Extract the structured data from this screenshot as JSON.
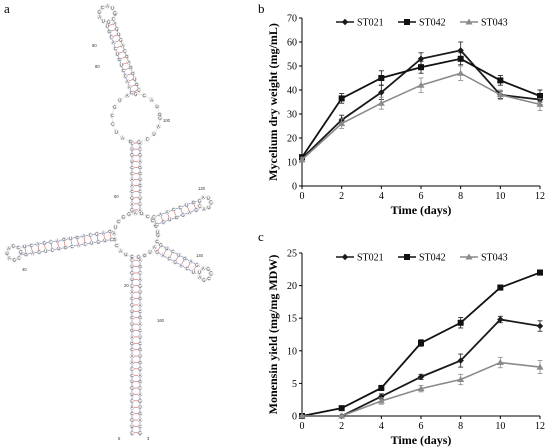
{
  "panels": {
    "a": "a",
    "b": "b",
    "c": "c"
  },
  "colors": {
    "ST021": "#1a1a1a",
    "ST042": "#111111",
    "ST043": "#8a8a8a",
    "pair": "#d43a3a",
    "backbone": "#2a2ac8"
  },
  "structure": {
    "index_labels": [
      "90",
      "100",
      "80",
      "120",
      "60",
      "140",
      "40",
      "20",
      "160",
      "5",
      "3"
    ]
  },
  "chart_data": [
    {
      "type": "line",
      "title": "",
      "xlabel": "Time (days)",
      "ylabel": "Mycelium dry weight  (mg/mL)",
      "xlim": [
        0,
        12
      ],
      "ylim": [
        0,
        70
      ],
      "x_ticks": [
        "0",
        "2",
        "4",
        "6",
        "8",
        "10",
        "12"
      ],
      "y_ticks": [
        "0",
        "10",
        "20",
        "30",
        "40",
        "50",
        "60",
        "70"
      ],
      "legend_position": "top",
      "grid": false,
      "x": [
        0,
        2,
        4,
        6,
        8,
        10,
        12
      ],
      "series": [
        {
          "name": "ST021",
          "marker": "diamond",
          "values": [
            11.5,
            27.5,
            39,
            53,
            56.5,
            38,
            36
          ],
          "errors": [
            1,
            2,
            3,
            2.5,
            3.5,
            1.5,
            2
          ]
        },
        {
          "name": "ST042",
          "marker": "square",
          "values": [
            12,
            36.5,
            45,
            49.5,
            53,
            44,
            37.5
          ],
          "errors": [
            1,
            2,
            3,
            2.5,
            2.5,
            2,
            2.5
          ]
        },
        {
          "name": "ST043",
          "marker": "triangle",
          "values": [
            11,
            26,
            34.5,
            42,
            47,
            38,
            34
          ],
          "errors": [
            1,
            2,
            2.5,
            3,
            3,
            2,
            2.5
          ]
        }
      ]
    },
    {
      "type": "line",
      "title": "",
      "xlabel": "Time (days)",
      "ylabel": "Monensin yield (mg/mg MDW)",
      "xlim": [
        0,
        12
      ],
      "ylim": [
        0,
        25
      ],
      "x_ticks": [
        "0",
        "2",
        "4",
        "6",
        "8",
        "10",
        "12"
      ],
      "y_ticks": [
        "0",
        "5",
        "10",
        "15",
        "20",
        "25"
      ],
      "legend_position": "top",
      "grid": false,
      "x": [
        0,
        2,
        4,
        6,
        8,
        10,
        12
      ],
      "series": [
        {
          "name": "ST021",
          "marker": "diamond",
          "values": [
            0,
            0,
            3,
            6,
            8.5,
            14.8,
            13.8
          ],
          "errors": [
            0.1,
            0.1,
            0.4,
            0.4,
            1,
            0.5,
            0.8
          ]
        },
        {
          "name": "ST042",
          "marker": "square",
          "values": [
            0,
            1.2,
            4.3,
            11.2,
            14.3,
            19.7,
            22
          ],
          "errors": [
            0.1,
            0.2,
            0.4,
            0.5,
            0.8,
            0.4,
            0.4
          ]
        },
        {
          "name": "ST043",
          "marker": "triangle",
          "values": [
            0,
            0,
            2.3,
            4.2,
            5.6,
            8.2,
            7.5
          ],
          "errors": [
            0.1,
            0.1,
            0.5,
            0.5,
            0.8,
            0.8,
            1
          ]
        }
      ]
    }
  ]
}
